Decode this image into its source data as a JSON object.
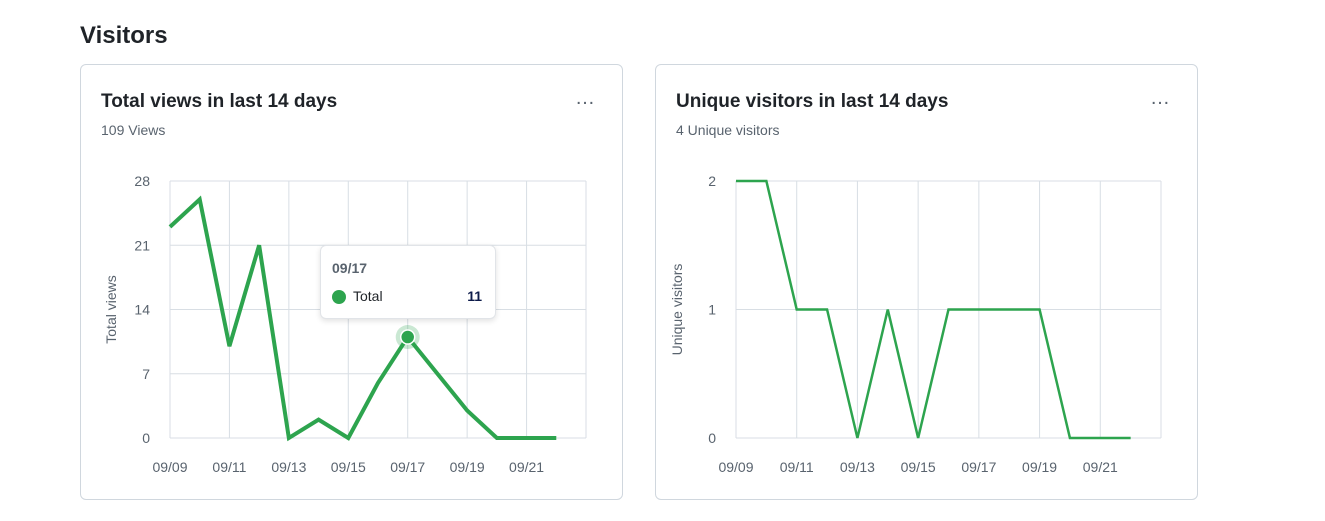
{
  "section_title": "Visitors",
  "more_icon": "…",
  "colors": {
    "line": "#2da44e",
    "grid": "#d8dee4"
  },
  "chart_data": [
    {
      "type": "line",
      "title": "Total views in last 14 days",
      "subtitle": "109 Views",
      "ylabel": "Total views",
      "xlabel": "",
      "x": [
        "09/09",
        "09/10",
        "09/11",
        "09/12",
        "09/13",
        "09/14",
        "09/15",
        "09/16",
        "09/17",
        "09/18",
        "09/19",
        "09/20",
        "09/21",
        "09/22"
      ],
      "x_ticks": [
        "09/09",
        "09/11",
        "09/13",
        "09/15",
        "09/17",
        "09/19",
        "09/21"
      ],
      "y_ticks": [
        0,
        7,
        14,
        21,
        28
      ],
      "ylim": [
        0,
        28
      ],
      "series": [
        {
          "name": "Total",
          "values": [
            23,
            26,
            10,
            21,
            0,
            2,
            0,
            6,
            11,
            7,
            3,
            0,
            0,
            0
          ]
        }
      ],
      "tooltip": {
        "date": "09/17",
        "label": "Total",
        "value": "11"
      }
    },
    {
      "type": "line",
      "title": "Unique visitors in last 14 days",
      "subtitle": "4 Unique visitors",
      "ylabel": "Unique visitors",
      "xlabel": "",
      "x": [
        "09/09",
        "09/10",
        "09/11",
        "09/12",
        "09/13",
        "09/14",
        "09/15",
        "09/16",
        "09/17",
        "09/18",
        "09/19",
        "09/20",
        "09/21",
        "09/22"
      ],
      "x_ticks": [
        "09/09",
        "09/11",
        "09/13",
        "09/15",
        "09/17",
        "09/19",
        "09/21"
      ],
      "y_ticks": [
        0,
        1,
        2
      ],
      "ylim": [
        0,
        2
      ],
      "series": [
        {
          "name": "Unique",
          "values": [
            2,
            2,
            1,
            1,
            0,
            1,
            0,
            1,
            1,
            1,
            1,
            0,
            0,
            0
          ]
        }
      ]
    }
  ]
}
